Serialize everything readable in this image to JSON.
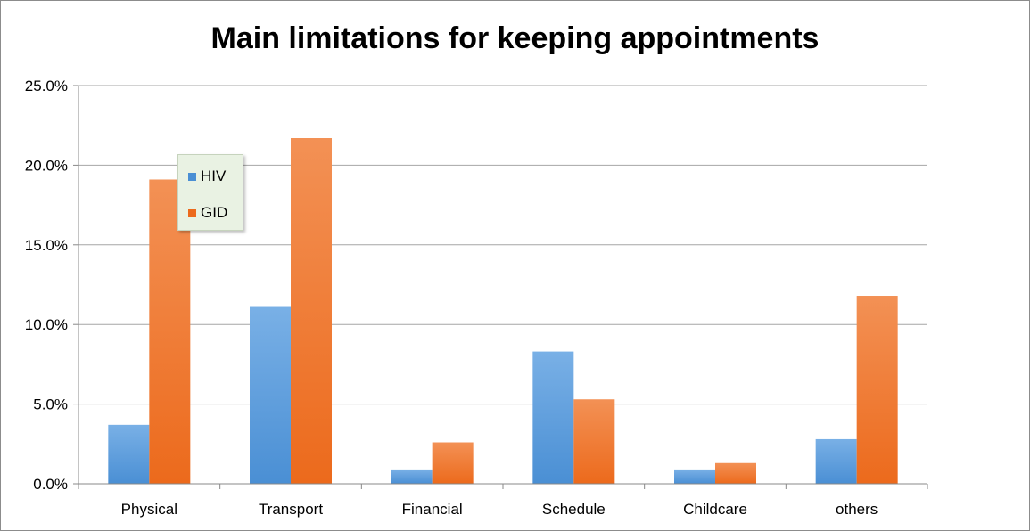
{
  "chart_data": {
    "type": "bar",
    "title": "Main limitations for keeping appointments",
    "xlabel": "",
    "ylabel": "",
    "categories": [
      "Physical",
      "Transport",
      "Financial",
      "Schedule",
      "Childcare",
      "others"
    ],
    "series": [
      {
        "name": "HIV",
        "values": [
          3.7,
          11.1,
          0.9,
          8.3,
          0.9,
          2.8
        ],
        "color": "#4a8fd4",
        "color_light": "#79b0e6"
      },
      {
        "name": "GID",
        "values": [
          19.1,
          21.7,
          2.6,
          5.3,
          1.3,
          11.8
        ],
        "color": "#ec6a1c",
        "color_light": "#f39155"
      }
    ],
    "ylim": [
      0,
      25
    ],
    "yticks": [
      "0.0%",
      "5.0%",
      "10.0%",
      "15.0%",
      "20.0%",
      "25.0%"
    ],
    "ytick_values": [
      0,
      5,
      10,
      15,
      20,
      25
    ],
    "grid": true,
    "legend_position": "top-left inside plot"
  }
}
